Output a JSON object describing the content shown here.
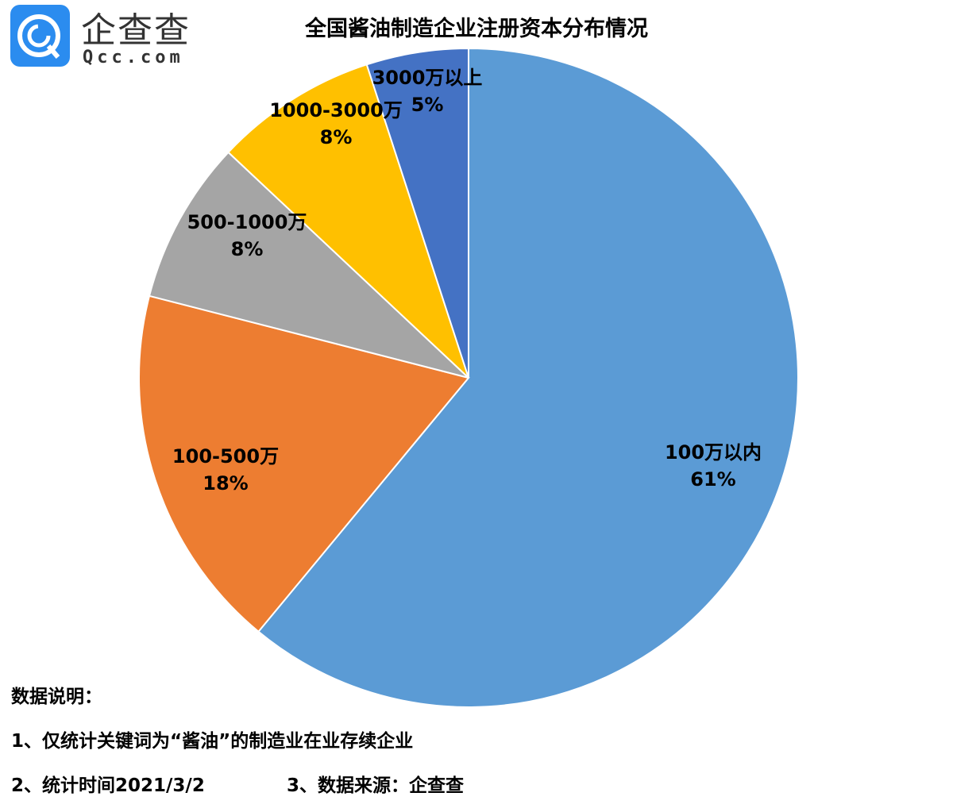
{
  "logo": {
    "text_cn": "企查查",
    "text_en": "Qcc.com",
    "color": "#2b8cef"
  },
  "chart_data": {
    "type": "pie",
    "title": "全国酱油制造企业注册资本分布情况",
    "start": "top",
    "direction": "clockwise",
    "categories": [
      "100万以内",
      "100-500万",
      "500-1000万",
      "1000-3000万",
      "3000万以上"
    ],
    "values": [
      61,
      18,
      8,
      8,
      5
    ],
    "labels": [
      "61%",
      "18%",
      "8%",
      "8%",
      "5%"
    ],
    "colors": [
      "#5B9BD5",
      "#ED7D31",
      "#A5A5A5",
      "#FFC000",
      "#4472C4"
    ]
  },
  "notes": {
    "heading": "数据说明：",
    "line1": "1、仅统计关键词为“酱油”的制造业在业存续企业",
    "line2a": "2、统计时间2021/3/2",
    "line2b": "3、数据来源：企查查"
  }
}
